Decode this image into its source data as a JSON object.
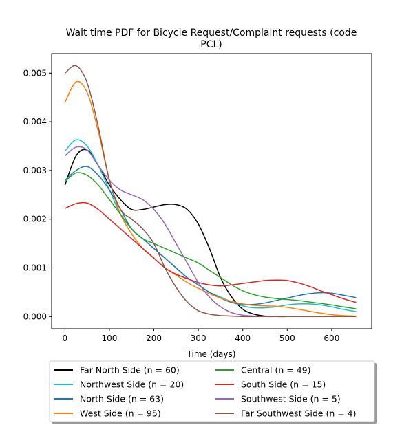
{
  "chart_data": {
    "type": "line",
    "title_line1": "Wait time PDF for Bicycle Request/Complaint  requests (code",
    "title_line2": "PCL)",
    "xlabel": "Time (days)",
    "ylabel": "",
    "xlim": [
      -30,
      690
    ],
    "ylim": [
      -0.00025,
      0.0054
    ],
    "xticks": [
      0,
      100,
      200,
      300,
      400,
      500,
      600
    ],
    "xtick_labels": [
      "0",
      "100",
      "200",
      "300",
      "400",
      "500",
      "600"
    ],
    "yticks": [
      0.0,
      0.001,
      0.002,
      0.003,
      0.004,
      0.005
    ],
    "ytick_labels": [
      "0.000",
      "0.001",
      "0.002",
      "0.003",
      "0.004",
      "0.005"
    ],
    "grid": false,
    "legend_placement": "below",
    "x": [
      0,
      25,
      50,
      75,
      100,
      125,
      150,
      175,
      200,
      225,
      250,
      275,
      300,
      325,
      350,
      375,
      400,
      425,
      450,
      475,
      500,
      525,
      550,
      575,
      600,
      625,
      655
    ],
    "series": [
      {
        "name": "Far North Side (n = 60)",
        "color": "#000000",
        "values": [
          0.0027,
          0.0033,
          0.00342,
          0.0031,
          0.0027,
          0.0024,
          0.0022,
          0.0022,
          0.00225,
          0.0023,
          0.0023,
          0.0022,
          0.0019,
          0.0014,
          0.0008,
          0.0004,
          0.00015,
          5e-05,
          1e-05,
          0.0,
          0.0,
          0.0,
          0.0,
          0.0,
          0.0,
          0.0,
          0.0
        ]
      },
      {
        "name": "Northwest Side (n = 20)",
        "color": "#17becf",
        "values": [
          0.0034,
          0.00363,
          0.0035,
          0.0031,
          0.0026,
          0.0021,
          0.0018,
          0.0016,
          0.0014,
          0.0012,
          0.001,
          0.0008,
          0.00065,
          0.0005,
          0.0004,
          0.0003,
          0.00022,
          0.00018,
          0.00018,
          0.0002,
          0.00024,
          0.00026,
          0.00026,
          0.00024,
          0.0002,
          0.00015,
          0.0001
        ]
      },
      {
        "name": "North Side (n = 63)",
        "color": "#1f77b4",
        "values": [
          0.0028,
          0.003,
          0.00308,
          0.0029,
          0.0026,
          0.0022,
          0.0018,
          0.0016,
          0.0014,
          0.0012,
          0.001,
          0.0008,
          0.00065,
          0.0005,
          0.00038,
          0.00029,
          0.00025,
          0.00025,
          0.00028,
          0.00033,
          0.00038,
          0.00043,
          0.00047,
          0.00049,
          0.00048,
          0.00044,
          0.00039
        ]
      },
      {
        "name": "West Side (n = 95)",
        "color": "#ff7f0e",
        "values": [
          0.0044,
          0.00482,
          0.0046,
          0.0038,
          0.0028,
          0.0021,
          0.0017,
          0.0014,
          0.0012,
          0.001,
          0.00085,
          0.0007,
          0.00058,
          0.00047,
          0.00038,
          0.00031,
          0.00026,
          0.00023,
          0.00022,
          0.00021,
          0.00019,
          0.00015,
          0.00011,
          7e-05,
          4e-05,
          2e-05,
          1e-05
        ]
      },
      {
        "name": "Central (n = 49)",
        "color": "#2ca02c",
        "values": [
          0.00277,
          0.00295,
          0.0029,
          0.0027,
          0.0024,
          0.0021,
          0.0018,
          0.0016,
          0.0015,
          0.0014,
          0.0013,
          0.0012,
          0.0011,
          0.00095,
          0.0008,
          0.00065,
          0.00053,
          0.00045,
          0.0004,
          0.00037,
          0.00035,
          0.00033,
          0.0003,
          0.00027,
          0.00024,
          0.0002,
          0.00016
        ]
      },
      {
        "name": "South Side (n = 15)",
        "color": "#d62728",
        "values": [
          0.00222,
          0.00232,
          0.00233,
          0.0022,
          0.002,
          0.0018,
          0.0016,
          0.0014,
          0.0012,
          0.001,
          0.00087,
          0.00078,
          0.0007,
          0.00065,
          0.00063,
          0.00065,
          0.00068,
          0.00071,
          0.00074,
          0.00075,
          0.00074,
          0.00069,
          0.00062,
          0.00053,
          0.00045,
          0.00037,
          0.00029
        ]
      },
      {
        "name": "Southwest Side (n = 5)",
        "color": "#9467bd",
        "values": [
          0.0033,
          0.00348,
          0.00342,
          0.0031,
          0.0028,
          0.0026,
          0.0025,
          0.0024,
          0.0022,
          0.0019,
          0.0015,
          0.0011,
          0.0007,
          0.0004,
          0.0002,
          8e-05,
          3e-05,
          1e-05,
          0.0,
          0.0,
          0.0,
          0.0,
          0.0,
          0.0,
          0.0,
          0.0,
          0.0
        ]
      },
      {
        "name": "Far Southwest Side (n = 4)",
        "color": "#8c564b",
        "values": [
          0.005,
          0.00515,
          0.0048,
          0.0039,
          0.0028,
          0.0022,
          0.002,
          0.0018,
          0.0015,
          0.001,
          0.0006,
          0.0003,
          0.00012,
          5e-05,
          2e-05,
          1e-05,
          0.0,
          0.0,
          0.0,
          0.0,
          0.0,
          0.0,
          0.0,
          0.0,
          0.0,
          0.0,
          0.0
        ]
      }
    ]
  }
}
